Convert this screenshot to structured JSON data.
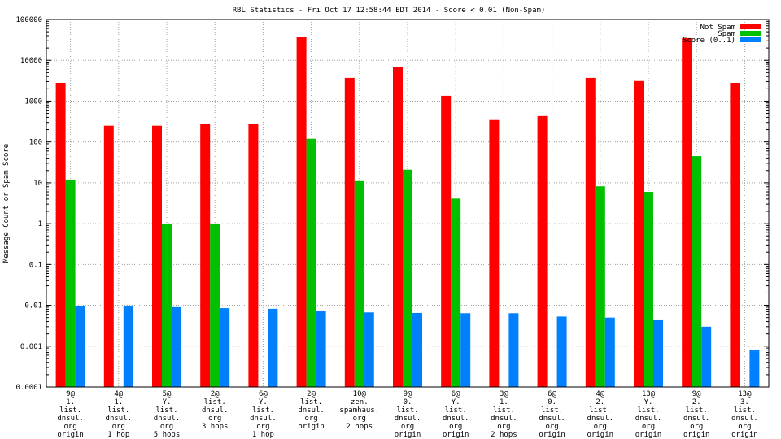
{
  "chart_data": {
    "type": "bar",
    "title": "RBL Statistics - Fri Oct 17 12:58:44 EDT 2014 - Score < 0.01 (Non-Spam)",
    "xlabel": "",
    "ylabel": "Message Count or Spam Score",
    "yscale": "log",
    "ylim": [
      0.0001,
      100000
    ],
    "grid": true,
    "legend_position": "top-right",
    "y_ticks": [
      "0.0001",
      "0.001",
      "0.01",
      "0.1",
      "1",
      "10",
      "100",
      "1000",
      "10000",
      "100000"
    ],
    "categories": [
      [
        "9@",
        "1.",
        "list.",
        "dnsul.",
        "org",
        "origin"
      ],
      [
        "4@",
        "1.",
        "list.",
        "dnsul.",
        "org",
        "1 hop"
      ],
      [
        "5@",
        "Y.",
        "list.",
        "dnsul.",
        "org",
        "5 hops"
      ],
      [
        "2@",
        "list.",
        "dnsul.",
        "org",
        "3 hops"
      ],
      [
        "6@",
        "Y.",
        "list.",
        "dnsul.",
        "org",
        "1 hop"
      ],
      [
        "2@",
        "list.",
        "dnsul.",
        "org",
        "origin"
      ],
      [
        "10@",
        "zen.",
        "spamhaus.",
        "org",
        "2 hops"
      ],
      [
        "9@",
        "0.",
        "list.",
        "dnsul.",
        "org",
        "origin"
      ],
      [
        "6@",
        "Y.",
        "list.",
        "dnsul.",
        "org",
        "origin"
      ],
      [
        "3@",
        "1.",
        "list.",
        "dnsul.",
        "org",
        "2 hops"
      ],
      [
        "6@",
        "0.",
        "list.",
        "dnsul.",
        "org",
        "origin"
      ],
      [
        "4@",
        "2.",
        "list.",
        "dnsul.",
        "org",
        "origin"
      ],
      [
        "13@",
        "Y.",
        "list.",
        "dnsul.",
        "org",
        "origin"
      ],
      [
        "9@",
        "2.",
        "list.",
        "dnsul.",
        "org",
        "origin"
      ],
      [
        "13@",
        "3.",
        "list.",
        "dnsul.",
        "org",
        "origin"
      ]
    ],
    "series": [
      {
        "name": "Not Spam",
        "color": "#ff0000",
        "values": [
          2800,
          250,
          250,
          270,
          270,
          37000,
          3700,
          7000,
          1350,
          360,
          430,
          3700,
          3100,
          35000,
          2800
        ]
      },
      {
        "name": "Spam",
        "color": "#00c000",
        "values": [
          12,
          null,
          1,
          1,
          null,
          120,
          11,
          21,
          4.1,
          null,
          null,
          8.2,
          6,
          45,
          null
        ]
      },
      {
        "name": "Score (0..1)",
        "color": "#0080ff",
        "values": [
          0.0095,
          0.0095,
          0.009,
          0.0085,
          0.0082,
          0.0071,
          0.0067,
          0.0065,
          0.0064,
          0.0064,
          0.0053,
          0.005,
          0.0043,
          0.003,
          0.00082
        ]
      }
    ]
  }
}
